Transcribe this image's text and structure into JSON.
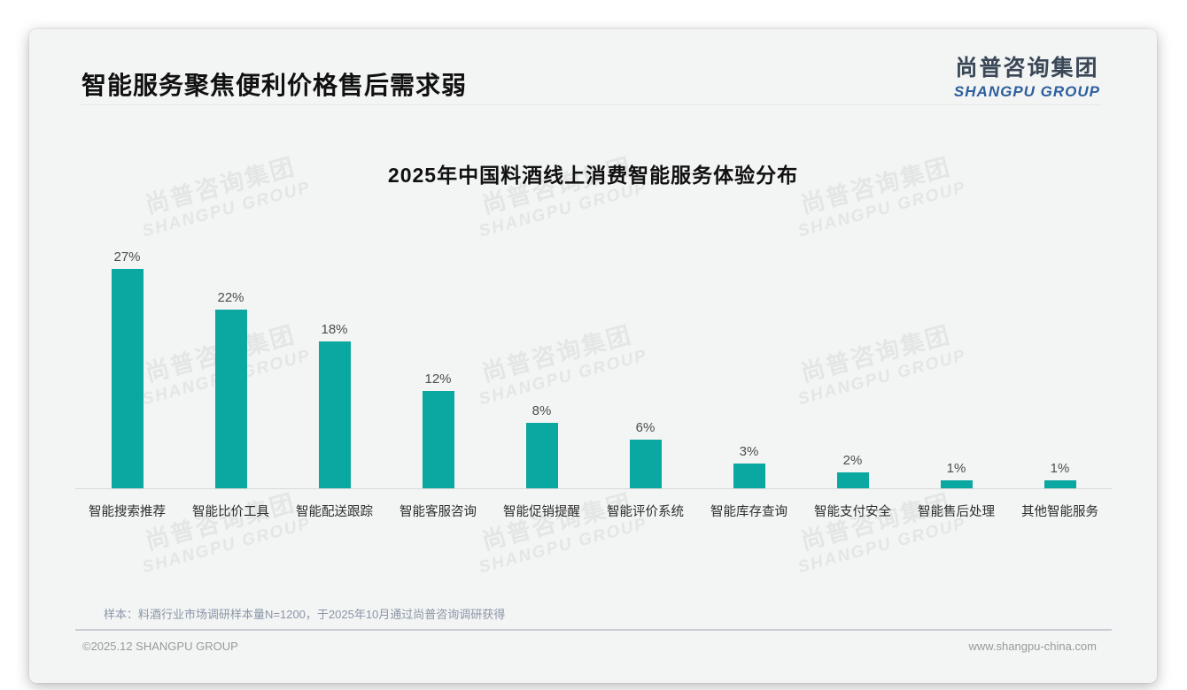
{
  "header": {
    "title": "智能服务聚焦便利价格售后需求弱"
  },
  "logo": {
    "cn": "尚普咨询集团",
    "en": "SHANGPU GROUP",
    "cn_color": "#3a4757",
    "en_color": "#2d5f9e"
  },
  "watermark": {
    "cn": "尚普咨询集团",
    "en": "SHANGPU GROUP"
  },
  "chart_data": {
    "type": "bar",
    "title": "2025年中国料酒线上消费智能服务体验分布",
    "categories": [
      "智能搜索推荐",
      "智能比价工具",
      "智能配送跟踪",
      "智能客服咨询",
      "智能促销提醒",
      "智能评价系统",
      "智能库存查询",
      "智能支付安全",
      "智能售后处理",
      "其他智能服务"
    ],
    "values": [
      27,
      22,
      18,
      12,
      8,
      6,
      3,
      2,
      1,
      1
    ],
    "data_labels": [
      "27%",
      "22%",
      "18%",
      "12%",
      "8%",
      "6%",
      "3%",
      "2%",
      "1%",
      "1%"
    ],
    "unit": "%",
    "bar_color": "#0aa8a0",
    "ylim": [
      0,
      30
    ],
    "grid": false,
    "legend": "none",
    "xlabel": "",
    "ylabel": ""
  },
  "footer": {
    "note": "样本：料酒行业市场调研样本量N=1200，于2025年10月通过尚普咨询调研获得",
    "copyright": "©2025.12 SHANGPU GROUP",
    "website": "www.shangpu-china.com"
  }
}
